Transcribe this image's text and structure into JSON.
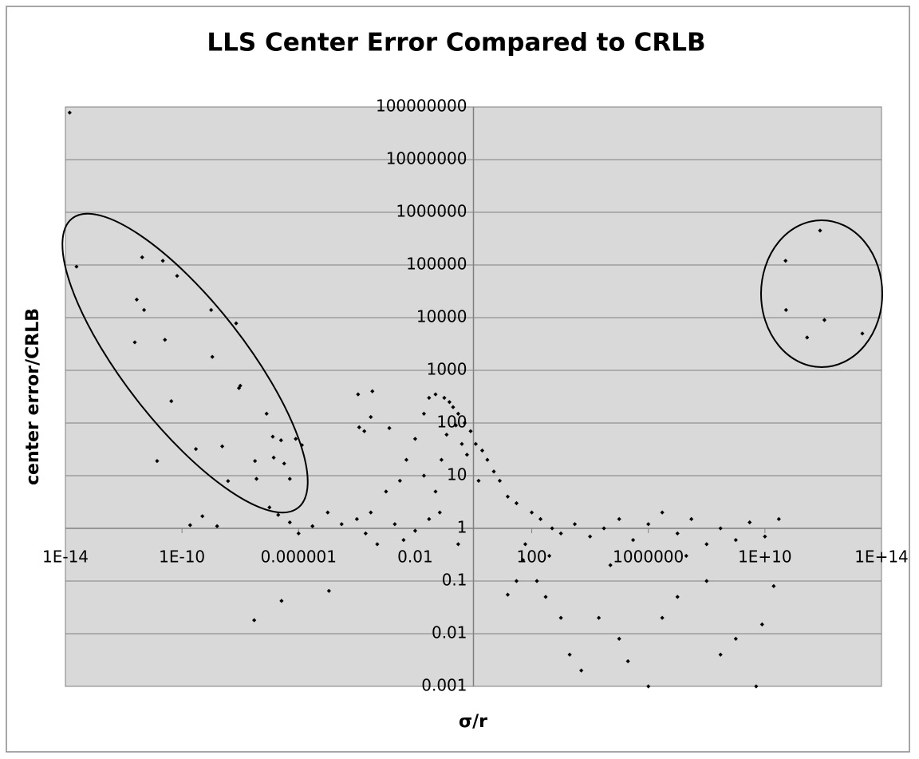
{
  "chart_data": {
    "type": "scatter",
    "title": "LLS Center Error Compared to CRLB",
    "x_label": "σ/r",
    "y_label": "center error/CRLB",
    "log_x": true,
    "log_y": true,
    "grid": true,
    "color": "#000000",
    "xlim": [
      1e-14,
      100000000000000.0
    ],
    "xticks": [
      {
        "value": 1e-14,
        "label": "1E-14"
      },
      {
        "value": 1e-10,
        "label": "1E-10"
      },
      1e-06,
      0.01,
      100,
      1000000,
      {
        "value": 10000000000.0,
        "label": "1E+10"
      },
      {
        "value": 100000000000000.0,
        "label": "1E+14"
      }
    ],
    "ylim": [
      0.001,
      100000000
    ],
    "yticks": [
      0.001,
      0.01,
      0.1,
      1,
      10,
      100,
      1000,
      10000,
      100000,
      1000000,
      10000000,
      100000000
    ],
    "x": [
      1.4e-14,
      2.4e-14,
      4.3e-12,
      2.2e-11,
      6.8e-11,
      2.8e-12,
      5e-12,
      2.4e-12,
      2.6e-11,
      1e-09,
      7.2e-09,
      1.1e-09,
      4.3e-11,
      1e-08,
      9e-09,
      8e-08,
      3e-10,
      2.4e-09,
      1.4e-11,
      1.3e-07,
      2.5e-07,
      8e-07,
      1.3e-06,
      1.4e-07,
      3.2e-08,
      3.2e-07,
      5e-07,
      3.6e-08,
      3.8e-09,
      1.9e-10,
      5e-10,
      1.6e-09,
      3e-08,
      2.6e-07,
      1.1e-05,
      0.00011,
      0.00034,
      0.00012,
      0.00018,
      0.0003,
      0.0013,
      51000000000.0,
      780000000000.0,
      53000000000.0,
      1100000000000.0,
      280000000000.0,
      22000000000000.0,
      0.03,
      0.05,
      0.1,
      0.15,
      0.2,
      0.3,
      0.5,
      0.8,
      1.2,
      2,
      3,
      5,
      8,
      15,
      30,
      0.02,
      0.01,
      0.005,
      0.003,
      0.001,
      0.0003,
      0.0001,
      3e-05,
      1e-05,
      3e-06,
      1e-06,
      5e-07,
      2e-07,
      1e-07,
      0.02,
      0.05,
      0.08,
      0.12,
      0.25,
      0.4,
      0.6,
      1.5,
      0.07,
      0.03,
      0.01,
      0.004,
      0.002,
      0.0005,
      0.0002,
      0.3,
      100,
      200,
      500,
      1000,
      3000,
      10000.0,
      30000.0,
      100000.0,
      300000.0,
      1000000.0,
      3000000.0,
      10000000.0,
      30000000.0,
      100000000.0,
      300000000.0,
      1000000000.0,
      3000000000.0,
      10000000000.0,
      30000000000.0,
      60,
      150,
      300,
      1000,
      2000,
      5000,
      20000.0,
      100000.0,
      200000.0,
      1000000.0,
      3000000.0,
      10000000.0,
      100000000.0,
      300000000.0,
      1000000000.0,
      5000000000.0,
      8000000000.0,
      20000000000.0,
      30,
      15,
      50,
      400,
      50000.0,
      20000000.0
    ],
    "y": [
      78000000.0,
      93000.0,
      140000.0,
      120000.0,
      62000.0,
      22000.0,
      14000.0,
      3400,
      3800,
      14000.0,
      7800,
      1800,
      260,
      510,
      460,
      150,
      32,
      36,
      19,
      55,
      47,
      50,
      38,
      22,
      19,
      17,
      8.7,
      8.7,
      7.9,
      1.15,
      1.7,
      1.1,
      0.018,
      0.042,
      0.065,
      350,
      400,
      83,
      70,
      130,
      80,
      120000.0,
      450000.0,
      14000.0,
      9000,
      4200,
      5000,
      300,
      350,
      300,
      250,
      200,
      150,
      100,
      70,
      40,
      30,
      20,
      12,
      8,
      4,
      3,
      150,
      50,
      20,
      8,
      5,
      2,
      1.5,
      1.2,
      2,
      1.1,
      0.8,
      1.3,
      1.8,
      2.5,
      10,
      5,
      20,
      60,
      90,
      40,
      25,
      8,
      2,
      1.5,
      0.9,
      0.6,
      1.2,
      0.5,
      0.8,
      0.5,
      2,
      1.5,
      1,
      0.8,
      1.2,
      0.7,
      1,
      1.5,
      0.6,
      1.2,
      2,
      0.8,
      1.5,
      0.5,
      1,
      0.6,
      1.3,
      0.7,
      1.5,
      0.5,
      0.1,
      0.05,
      0.02,
      0.004,
      0.002,
      0.02,
      0.008,
      0.003,
      0.001,
      0.02,
      0.05,
      0.1,
      0.004,
      0.008,
      0.001,
      0.015,
      0.08,
      0.1,
      0.055,
      0.25,
      0.3,
      0.2,
      0.3
    ]
  }
}
